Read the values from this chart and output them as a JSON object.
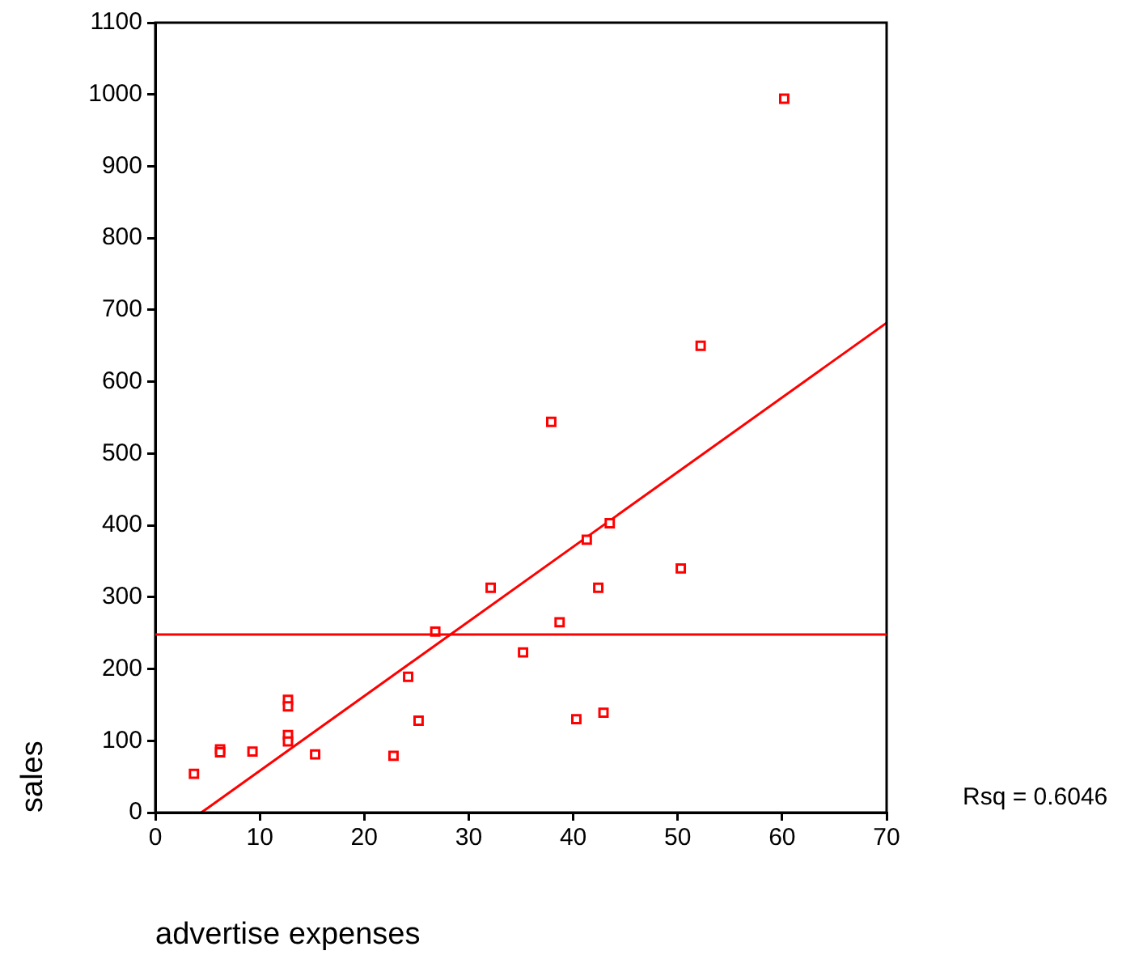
{
  "chart_data": {
    "type": "scatter",
    "xlabel": "advertise expenses",
    "ylabel": "sales",
    "annotations": [
      "Rsq = 0.6046"
    ],
    "xlim": [
      0,
      70
    ],
    "xticks": [
      0,
      10,
      20,
      30,
      40,
      50,
      60,
      70
    ],
    "ylim": [
      0,
      1100
    ],
    "yticks": [
      0,
      100,
      200,
      300,
      400,
      500,
      600,
      700,
      800,
      900,
      1000,
      1100
    ],
    "grid": false,
    "legend": false,
    "series": [
      {
        "color": "#ff0000",
        "marker": "square",
        "x": [
          3.7,
          6.2,
          6.2,
          9.3,
          12.7,
          12.7,
          12.7,
          12.7,
          15.3,
          22.8,
          24.2,
          25.2,
          26.8,
          32.1,
          35.2,
          38.7,
          37.9,
          40.3,
          41.3,
          42.4,
          42.9,
          43.5,
          50.3,
          52.2,
          60.2
        ],
        "values": [
          54,
          88,
          84,
          85,
          157,
          148,
          108,
          99,
          81,
          79,
          189,
          128,
          252,
          313,
          223,
          265,
          544,
          130,
          380,
          313,
          139,
          403,
          340,
          650,
          994
        ]
      },
      {
        "type": "line",
        "marker": "none",
        "color": "#ff0000",
        "x": [
          4.4,
          70
        ],
        "values": [
          0,
          682
        ]
      }
    ],
    "ref_lines": [
      {
        "axis": "y",
        "value": 248,
        "color": "#ff0000"
      }
    ]
  }
}
